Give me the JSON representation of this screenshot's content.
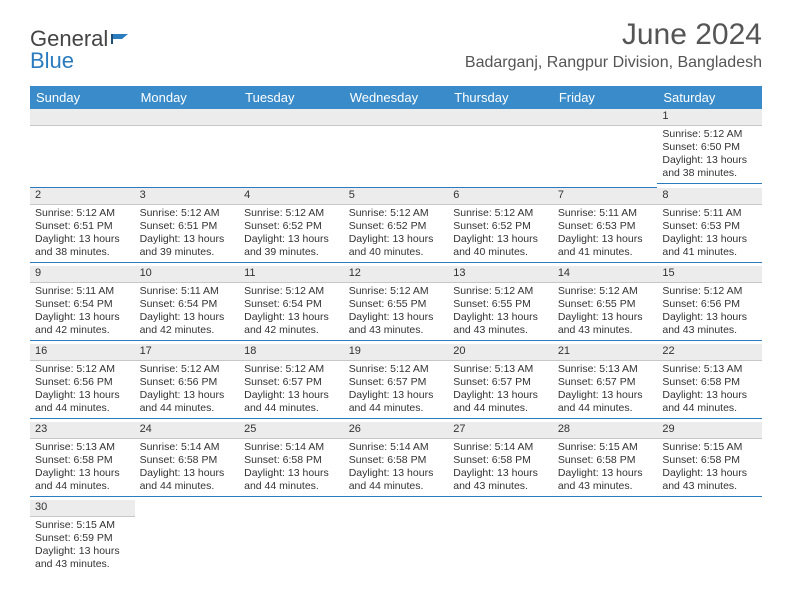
{
  "brand": {
    "part1": "General",
    "part2": "Blue"
  },
  "title": "June 2024",
  "location": "Badarganj, Rangpur Division, Bangladesh",
  "colors": {
    "header_bg": "#3a8bc9",
    "header_text": "#ffffff",
    "daynum_bg": "#ececec",
    "row_divider": "#2b7bbf",
    "logo_blue": "#2b7bbf",
    "text": "#333333"
  },
  "day_headers": [
    "Sunday",
    "Monday",
    "Tuesday",
    "Wednesday",
    "Thursday",
    "Friday",
    "Saturday"
  ],
  "weeks": [
    [
      null,
      null,
      null,
      null,
      null,
      null,
      {
        "n": "1",
        "sr": "5:12 AM",
        "ss": "6:50 PM",
        "dl": "13 hours and 38 minutes."
      }
    ],
    [
      {
        "n": "2",
        "sr": "5:12 AM",
        "ss": "6:51 PM",
        "dl": "13 hours and 38 minutes."
      },
      {
        "n": "3",
        "sr": "5:12 AM",
        "ss": "6:51 PM",
        "dl": "13 hours and 39 minutes."
      },
      {
        "n": "4",
        "sr": "5:12 AM",
        "ss": "6:52 PM",
        "dl": "13 hours and 39 minutes."
      },
      {
        "n": "5",
        "sr": "5:12 AM",
        "ss": "6:52 PM",
        "dl": "13 hours and 40 minutes."
      },
      {
        "n": "6",
        "sr": "5:12 AM",
        "ss": "6:52 PM",
        "dl": "13 hours and 40 minutes."
      },
      {
        "n": "7",
        "sr": "5:11 AM",
        "ss": "6:53 PM",
        "dl": "13 hours and 41 minutes."
      },
      {
        "n": "8",
        "sr": "5:11 AM",
        "ss": "6:53 PM",
        "dl": "13 hours and 41 minutes."
      }
    ],
    [
      {
        "n": "9",
        "sr": "5:11 AM",
        "ss": "6:54 PM",
        "dl": "13 hours and 42 minutes."
      },
      {
        "n": "10",
        "sr": "5:11 AM",
        "ss": "6:54 PM",
        "dl": "13 hours and 42 minutes."
      },
      {
        "n": "11",
        "sr": "5:12 AM",
        "ss": "6:54 PM",
        "dl": "13 hours and 42 minutes."
      },
      {
        "n": "12",
        "sr": "5:12 AM",
        "ss": "6:55 PM",
        "dl": "13 hours and 43 minutes."
      },
      {
        "n": "13",
        "sr": "5:12 AM",
        "ss": "6:55 PM",
        "dl": "13 hours and 43 minutes."
      },
      {
        "n": "14",
        "sr": "5:12 AM",
        "ss": "6:55 PM",
        "dl": "13 hours and 43 minutes."
      },
      {
        "n": "15",
        "sr": "5:12 AM",
        "ss": "6:56 PM",
        "dl": "13 hours and 43 minutes."
      }
    ],
    [
      {
        "n": "16",
        "sr": "5:12 AM",
        "ss": "6:56 PM",
        "dl": "13 hours and 44 minutes."
      },
      {
        "n": "17",
        "sr": "5:12 AM",
        "ss": "6:56 PM",
        "dl": "13 hours and 44 minutes."
      },
      {
        "n": "18",
        "sr": "5:12 AM",
        "ss": "6:57 PM",
        "dl": "13 hours and 44 minutes."
      },
      {
        "n": "19",
        "sr": "5:12 AM",
        "ss": "6:57 PM",
        "dl": "13 hours and 44 minutes."
      },
      {
        "n": "20",
        "sr": "5:13 AM",
        "ss": "6:57 PM",
        "dl": "13 hours and 44 minutes."
      },
      {
        "n": "21",
        "sr": "5:13 AM",
        "ss": "6:57 PM",
        "dl": "13 hours and 44 minutes."
      },
      {
        "n": "22",
        "sr": "5:13 AM",
        "ss": "6:58 PM",
        "dl": "13 hours and 44 minutes."
      }
    ],
    [
      {
        "n": "23",
        "sr": "5:13 AM",
        "ss": "6:58 PM",
        "dl": "13 hours and 44 minutes."
      },
      {
        "n": "24",
        "sr": "5:14 AM",
        "ss": "6:58 PM",
        "dl": "13 hours and 44 minutes."
      },
      {
        "n": "25",
        "sr": "5:14 AM",
        "ss": "6:58 PM",
        "dl": "13 hours and 44 minutes."
      },
      {
        "n": "26",
        "sr": "5:14 AM",
        "ss": "6:58 PM",
        "dl": "13 hours and 44 minutes."
      },
      {
        "n": "27",
        "sr": "5:14 AM",
        "ss": "6:58 PM",
        "dl": "13 hours and 43 minutes."
      },
      {
        "n": "28",
        "sr": "5:15 AM",
        "ss": "6:58 PM",
        "dl": "13 hours and 43 minutes."
      },
      {
        "n": "29",
        "sr": "5:15 AM",
        "ss": "6:58 PM",
        "dl": "13 hours and 43 minutes."
      }
    ],
    [
      {
        "n": "30",
        "sr": "5:15 AM",
        "ss": "6:59 PM",
        "dl": "13 hours and 43 minutes."
      },
      null,
      null,
      null,
      null,
      null,
      null
    ]
  ],
  "labels": {
    "sunrise": "Sunrise:",
    "sunset": "Sunset:",
    "daylight": "Daylight:"
  }
}
